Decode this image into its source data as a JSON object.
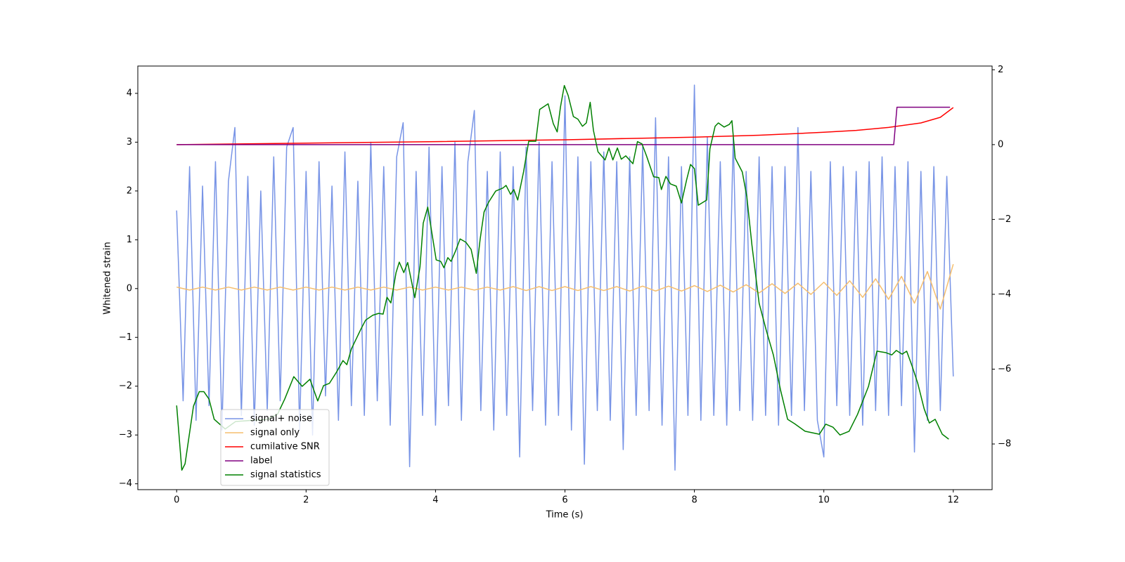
{
  "chart_data": {
    "type": "line",
    "xlabel": "Time (s)",
    "ylabel": "Whitened strain",
    "xlim": [
      -0.6,
      12.6
    ],
    "ylim": [
      -4.12,
      4.56
    ],
    "y2lim": [
      -9.22,
      2.1
    ],
    "xticks": [
      0,
      2,
      4,
      6,
      8,
      10,
      12
    ],
    "yticks": [
      {
        "value": -4,
        "label": "−4"
      },
      {
        "value": -3,
        "label": "−3"
      },
      {
        "value": -2,
        "label": "−2"
      },
      {
        "value": -1,
        "label": "−1"
      },
      0,
      1,
      2,
      3,
      4
    ],
    "y2ticks": [
      {
        "value": -8,
        "label": "−8"
      },
      {
        "value": -6,
        "label": "−6"
      },
      {
        "value": -4,
        "label": "−4"
      },
      {
        "value": -2,
        "label": "−2"
      },
      0,
      2
    ],
    "legend": "lower left",
    "series": [
      {
        "name": "signal+ noise",
        "color": "#7894e6",
        "axis": "y",
        "x": [
          0,
          0.1,
          0.2,
          0.3,
          0.4,
          0.5,
          0.6,
          0.7,
          0.8,
          0.9,
          1,
          1.1,
          1.2,
          1.3,
          1.4,
          1.5,
          1.6,
          1.7,
          1.8,
          1.9,
          2,
          2.1,
          2.2,
          2.3,
          2.4,
          2.5,
          2.6,
          2.7,
          2.8,
          2.9,
          3,
          3.1,
          3.2,
          3.3,
          3.4,
          3.5,
          3.6,
          3.7,
          3.8,
          3.9,
          4,
          4.1,
          4.2,
          4.3,
          4.4,
          4.5,
          4.6,
          4.7,
          4.8,
          4.9,
          5,
          5.1,
          5.2,
          5.3,
          5.4,
          5.5,
          5.6,
          5.7,
          5.8,
          5.9,
          6,
          6.1,
          6.2,
          6.3,
          6.4,
          6.5,
          6.6,
          6.7,
          6.8,
          6.9,
          7,
          7.1,
          7.2,
          7.3,
          7.4,
          7.5,
          7.6,
          7.7,
          7.8,
          7.9,
          8,
          8.1,
          8.2,
          8.3,
          8.4,
          8.5,
          8.6,
          8.7,
          8.8,
          8.9,
          9,
          9.1,
          9.2,
          9.3,
          9.4,
          9.5,
          9.6,
          9.7,
          9.8,
          9.9,
          10,
          10.1,
          10.2,
          10.3,
          10.4,
          10.5,
          10.6,
          10.7,
          10.8,
          10.9,
          11,
          11.1,
          11.2,
          11.3,
          11.4,
          11.5,
          11.6,
          11.7,
          11.8,
          11.9,
          12
        ],
        "values": [
          1.6,
          -2.3,
          2.5,
          -2.7,
          2.1,
          -2.4,
          2.6,
          -2.9,
          2.2,
          3.3,
          -2.6,
          2.3,
          -2.8,
          2.0,
          -2.5,
          2.7,
          -2.3,
          2.9,
          3.3,
          -2.9,
          2.4,
          -3.0,
          2.6,
          -2.2,
          2.1,
          -2.7,
          2.8,
          -2.4,
          2.2,
          -2.6,
          3.0,
          -2.3,
          2.5,
          -2.8,
          2.7,
          3.4,
          -3.65,
          2.4,
          -2.6,
          2.9,
          -2.8,
          2.5,
          -2.4,
          3.0,
          -2.7,
          2.6,
          3.65,
          -2.5,
          2.4,
          -2.9,
          2.8,
          -2.6,
          2.5,
          -3.45,
          2.9,
          -2.5,
          3.0,
          -2.8,
          2.6,
          -2.6,
          3.95,
          -2.9,
          2.7,
          -3.6,
          2.6,
          -2.5,
          2.8,
          -2.7,
          2.6,
          -3.3,
          2.7,
          -2.6,
          2.9,
          -2.5,
          3.5,
          -2.8,
          2.7,
          -3.72,
          2.5,
          -2.6,
          4.17,
          -2.7,
          3.1,
          -2.6,
          2.6,
          -2.8,
          3.1,
          -2.5,
          2.4,
          -2.7,
          2.7,
          -2.6,
          2.5,
          -2.8,
          2.5,
          -2.6,
          3.3,
          -2.5,
          2.4,
          -2.7,
          -3.45,
          2.6,
          -2.4,
          2.5,
          -2.6,
          2.4,
          -2.8,
          2.6,
          -2.5,
          2.7,
          -2.6,
          2.5,
          -2.4,
          2.6,
          -3.35,
          2.4,
          -2.7,
          2.5,
          -2.5,
          2.3,
          -1.8
        ]
      },
      {
        "name": "signal only",
        "color": "#f5be6e",
        "axis": "y",
        "x": [
          0,
          0.2,
          0.4,
          0.6,
          0.8,
          1,
          1.2,
          1.4,
          1.6,
          1.8,
          2,
          2.2,
          2.4,
          2.6,
          2.8,
          3,
          3.2,
          3.4,
          3.6,
          3.8,
          4,
          4.2,
          4.4,
          4.6,
          4.8,
          5,
          5.2,
          5.4,
          5.6,
          5.8,
          6,
          6.2,
          6.4,
          6.6,
          6.8,
          7,
          7.2,
          7.4,
          7.6,
          7.8,
          8,
          8.2,
          8.4,
          8.6,
          8.8,
          9,
          9.2,
          9.4,
          9.6,
          9.8,
          10,
          10.2,
          10.4,
          10.6,
          10.8,
          11,
          11.2,
          11.4,
          11.6,
          11.8,
          12
        ],
        "values": [
          0.03,
          -0.03,
          0.03,
          -0.03,
          0.03,
          -0.03,
          0.03,
          -0.03,
          0.03,
          -0.03,
          0.03,
          -0.03,
          0.03,
          -0.03,
          0.03,
          -0.03,
          0.03,
          -0.03,
          0.03,
          -0.03,
          0.03,
          -0.03,
          0.03,
          -0.03,
          0.03,
          -0.03,
          0.04,
          -0.04,
          0.04,
          -0.04,
          0.04,
          -0.04,
          0.04,
          -0.04,
          0.04,
          -0.05,
          0.05,
          -0.05,
          0.05,
          -0.05,
          0.06,
          -0.06,
          0.07,
          -0.07,
          0.08,
          -0.09,
          0.1,
          -0.1,
          0.11,
          -0.12,
          0.13,
          -0.14,
          0.16,
          -0.18,
          0.2,
          -0.22,
          0.25,
          -0.3,
          0.35,
          -0.42,
          0.5
        ]
      },
      {
        "name": "cumilative SNR",
        "color": "#ff0000",
        "axis": "y2",
        "x": [
          0,
          2,
          4,
          6,
          8,
          9,
          10,
          10.5,
          11,
          11.5,
          11.8,
          12
        ],
        "values": [
          0,
          0.04,
          0.08,
          0.13,
          0.2,
          0.25,
          0.33,
          0.38,
          0.46,
          0.58,
          0.73,
          0.99
        ]
      },
      {
        "name": "label",
        "color": "#800080",
        "axis": "y2",
        "x": [
          0,
          11.08,
          11.13,
          11.95
        ],
        "values": [
          0,
          0,
          1,
          1
        ]
      },
      {
        "name": "signal statistics",
        "color": "#008000",
        "axis": "y2",
        "x": [
          0,
          0.08,
          0.13,
          0.26,
          0.35,
          0.42,
          0.5,
          0.58,
          0.75,
          0.91,
          1.4,
          1.56,
          1.67,
          1.81,
          1.94,
          2.06,
          2.18,
          2.27,
          2.36,
          2.47,
          2.57,
          2.63,
          2.7,
          2.85,
          2.92,
          3.03,
          3.12,
          3.19,
          3.25,
          3.31,
          3.39,
          3.44,
          3.51,
          3.57,
          3.68,
          3.76,
          3.81,
          3.88,
          4.01,
          4.08,
          4.13,
          4.19,
          4.24,
          4.31,
          4.38,
          4.47,
          4.55,
          4.63,
          4.69,
          4.75,
          4.82,
          4.93,
          5.04,
          5.09,
          5.16,
          5.21,
          5.27,
          5.36,
          5.44,
          5.55,
          5.61,
          5.74,
          5.82,
          5.88,
          5.93,
          5.99,
          6.05,
          6.13,
          6.2,
          6.27,
          6.33,
          6.39,
          6.44,
          6.51,
          6.62,
          6.68,
          6.74,
          6.81,
          6.87,
          6.94,
          7.05,
          7.12,
          7.19,
          7.26,
          7.37,
          7.45,
          7.49,
          7.56,
          7.63,
          7.72,
          7.8,
          7.88,
          7.94,
          8.0,
          8.06,
          8.19,
          8.24,
          8.32,
          8.37,
          8.46,
          8.54,
          8.58,
          8.63,
          8.74,
          8.81,
          8.89,
          9.0,
          9.11,
          9.22,
          9.33,
          9.44,
          9.55,
          9.71,
          9.93,
          10.03,
          10.14,
          10.25,
          10.39,
          10.52,
          10.69,
          10.82,
          10.96,
          11.05,
          11.12,
          11.21,
          11.28,
          11.36,
          11.45,
          11.55,
          11.63,
          11.72,
          11.83,
          11.93
        ],
        "values": [
          -6.97,
          -8.7,
          -8.53,
          -6.99,
          -6.6,
          -6.6,
          -6.8,
          -7.34,
          -7.6,
          -7.4,
          -7.34,
          -7.2,
          -6.8,
          -6.2,
          -6.46,
          -6.27,
          -6.85,
          -6.44,
          -6.38,
          -6.08,
          -5.77,
          -5.88,
          -5.46,
          -4.92,
          -4.69,
          -4.56,
          -4.51,
          -4.53,
          -4.08,
          -4.23,
          -3.42,
          -3.14,
          -3.42,
          -3.15,
          -4.09,
          -3.27,
          -2.1,
          -1.67,
          -3.08,
          -3.12,
          -3.29,
          -3.02,
          -3.12,
          -2.84,
          -2.52,
          -2.61,
          -2.8,
          -3.44,
          -2.52,
          -1.8,
          -1.54,
          -1.24,
          -1.16,
          -1.09,
          -1.33,
          -1.2,
          -1.48,
          -0.73,
          0.09,
          0.09,
          0.94,
          1.09,
          0.56,
          0.34,
          1.0,
          1.58,
          1.31,
          0.75,
          0.68,
          0.49,
          0.58,
          1.13,
          0.38,
          -0.19,
          -0.41,
          -0.09,
          -0.41,
          -0.09,
          -0.39,
          -0.3,
          -0.51,
          0.08,
          0.02,
          -0.3,
          -0.86,
          -0.88,
          -1.2,
          -0.85,
          -1.05,
          -1.11,
          -1.56,
          -0.94,
          -0.53,
          -0.64,
          -1.62,
          -1.48,
          -0.11,
          0.49,
          0.58,
          0.47,
          0.54,
          0.64,
          -0.36,
          -0.73,
          -1.39,
          -2.7,
          -4.24,
          -4.96,
          -5.62,
          -6.55,
          -7.34,
          -7.46,
          -7.66,
          -7.74,
          -7.47,
          -7.55,
          -7.76,
          -7.66,
          -7.21,
          -6.46,
          -5.52,
          -5.56,
          -5.62,
          -5.5,
          -5.6,
          -5.52,
          -5.9,
          -6.37,
          -7.06,
          -7.44,
          -7.34,
          -7.74,
          -7.87
        ]
      }
    ]
  }
}
